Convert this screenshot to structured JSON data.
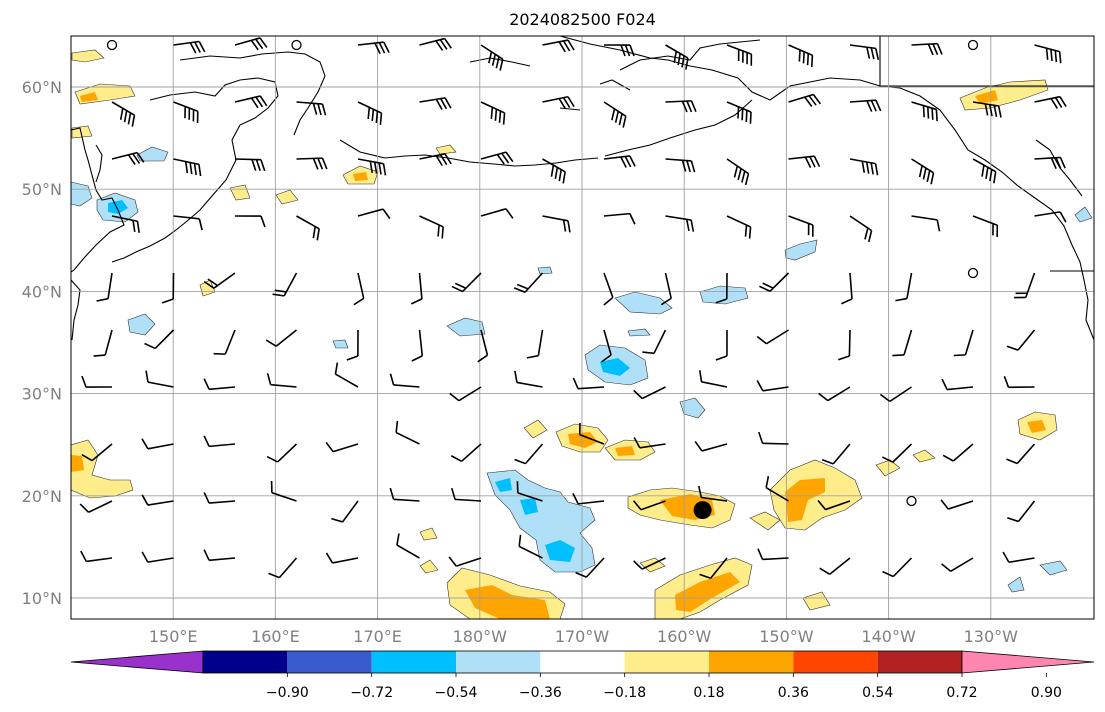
{
  "title": "2024082500 F024",
  "map": {
    "lat_labels": [
      "60°N",
      "50°N",
      "40°N",
      "30°N",
      "20°N",
      "10°N"
    ],
    "lon_labels": [
      "150°E",
      "160°E",
      "170°E",
      "180°W",
      "170°W",
      "160°W",
      "150°W",
      "140°W",
      "130°W"
    ],
    "label_color": "#808080",
    "grid_color": "#a0a0a0",
    "coastline_color": "#000000",
    "marker": {
      "name": "location-marker",
      "lon": -158.2,
      "lat": 18.6
    }
  },
  "colorbar": {
    "tick_labels": [
      "−0.90",
      "−0.72",
      "−0.54",
      "−0.36",
      "−0.18",
      "0.18",
      "0.36",
      "0.54",
      "0.72",
      "0.90"
    ],
    "colors": [
      "#9932cc",
      "#00008b",
      "#3a5bcd",
      "#00bfff",
      "#b0e0f8",
      "#ffffff",
      "#ffec8b",
      "#ffa500",
      "#ff4500",
      "#b22222",
      "#ff86b0"
    ],
    "extend": "both"
  }
}
